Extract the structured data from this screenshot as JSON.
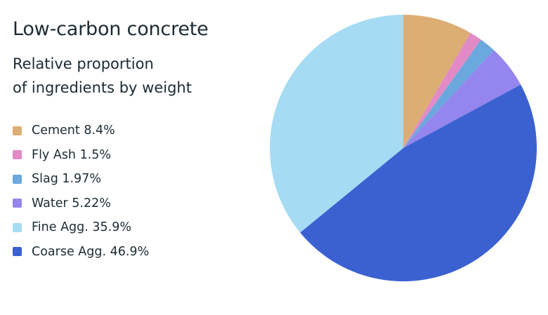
{
  "chart_data": {
    "type": "pie",
    "title": "Low-carbon concrete",
    "subtitle_lines": [
      "Relative proportion",
      "of ingredients by weight"
    ],
    "start_angle_deg": 0,
    "direction": "clockwise",
    "legend_position": "left",
    "slices": [
      {
        "label": "Cement",
        "value": 8.4,
        "display": "8.4%",
        "color": "#dcae74"
      },
      {
        "label": "Fly Ash",
        "value": 1.5,
        "display": "1.5%",
        "color": "#e28ac6"
      },
      {
        "label": "Slag",
        "value": 1.97,
        "display": "1.97%",
        "color": "#6aa8de"
      },
      {
        "label": "Water",
        "value": 5.22,
        "display": "5.22%",
        "color": "#9585ee"
      },
      {
        "label": "Coarse Agg.",
        "value": 46.9,
        "display": "46.9%",
        "color": "#3b61d1"
      },
      {
        "label": "Fine Agg.",
        "value": 35.9,
        "display": "35.9%",
        "color": "#a5dbf3"
      }
    ],
    "legend_order": [
      "Cement",
      "Fly Ash",
      "Slag",
      "Water",
      "Fine Agg.",
      "Coarse Agg."
    ]
  }
}
